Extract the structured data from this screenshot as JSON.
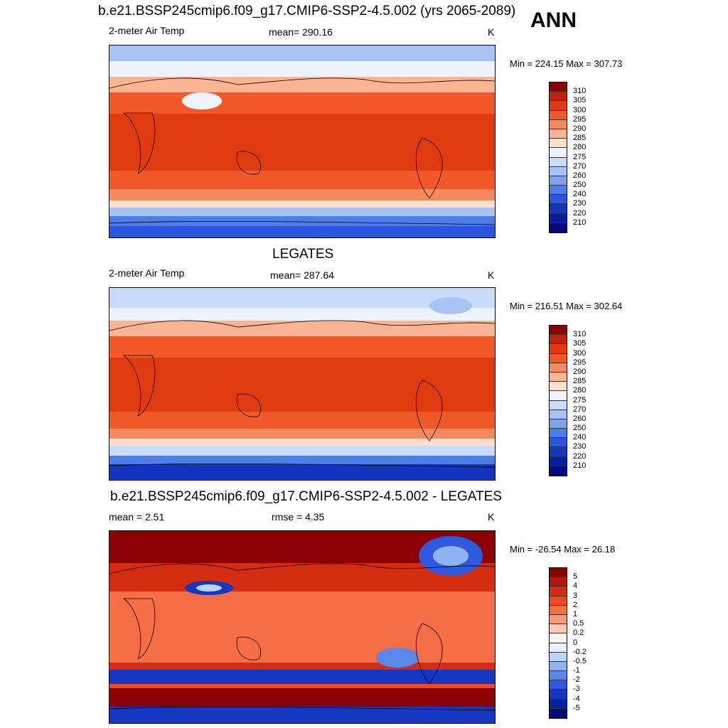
{
  "header": {
    "title": "b.e21.BSSP245cmip6.f09_g17.CMIP6-SSP2-4.5.002 (yrs 2065-2089)",
    "season": "ANN"
  },
  "panels": [
    {
      "title": "",
      "left_label": "2-meter Air Temp",
      "center_label": "mean= 290.16",
      "units": "K",
      "minmax": "Min = 224.15 Max = 307.73",
      "levels": [
        "310",
        "305",
        "300",
        "295",
        "290",
        "285",
        "280",
        "275",
        "270",
        "260",
        "250",
        "240",
        "230",
        "220",
        "210"
      ],
      "colors": [
        "#8b0000",
        "#c1200a",
        "#e03a10",
        "#f05a2a",
        "#f58a5e",
        "#fab492",
        "#fde0cc",
        "#eef4ff",
        "#c8dcfa",
        "#a8c4f5",
        "#7ea2ec",
        "#4e7de8",
        "#2a55de",
        "#1335c0",
        "#061e9e",
        "#000a78"
      ]
    },
    {
      "title": "LEGATES",
      "left_label": "2-meter Air Temp",
      "center_label": "mean= 287.64",
      "units": "K",
      "minmax": "Min = 216.51 Max = 302.64",
      "levels": [
        "310",
        "305",
        "300",
        "295",
        "290",
        "285",
        "280",
        "275",
        "270",
        "260",
        "250",
        "240",
        "230",
        "220",
        "210"
      ],
      "colors": [
        "#8b0000",
        "#c1200a",
        "#e03a10",
        "#f05a2a",
        "#f58a5e",
        "#fab492",
        "#fde0cc",
        "#eef4ff",
        "#c8dcfa",
        "#a8c4f5",
        "#7ea2ec",
        "#4e7de8",
        "#2a55de",
        "#1335c0",
        "#061e9e",
        "#000a78"
      ]
    },
    {
      "title": "b.e21.BSSP245cmip6.f09_g17.CMIP6-SSP2-4.5.002 - LEGATES",
      "left_label": "mean =   2.51",
      "center_label": "rmse =   4.35",
      "units": "K",
      "minmax": "Min = -26.54 Max =  26.18",
      "levels": [
        "5",
        "4",
        "3",
        "2",
        "1",
        "0.5",
        "0.2",
        "0",
        "-0.2",
        "-0.5",
        "-1",
        "-2",
        "-3",
        "-4",
        "-5"
      ],
      "colors": [
        "#8b0000",
        "#b3150a",
        "#d42c10",
        "#ec4a22",
        "#f56e45",
        "#fa9a78",
        "#fdc7b0",
        "#fff2ec",
        "#e6f0ff",
        "#bcd4fa",
        "#8fb2f2",
        "#5a88ea",
        "#2d5ade",
        "#1538c2",
        "#061f9e",
        "#000a78"
      ]
    }
  ]
}
